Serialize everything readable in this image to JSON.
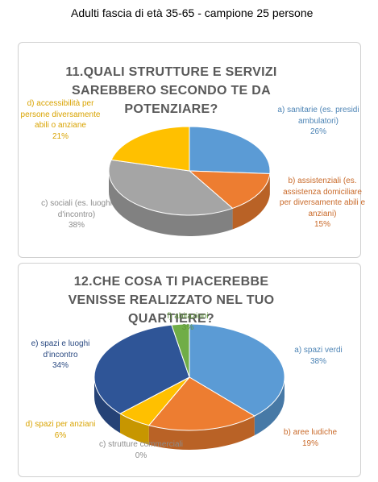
{
  "header": {
    "title": "Adulti fascia di età 35-65 - campione 25 persone"
  },
  "chart_data": [
    {
      "type": "pie",
      "title": "11.QUALI STRUTTURE E SERVIZI SAREBBERO SECONDO TE DA POTENZIARE?",
      "categories": [
        "a) sanitarie (es. presidi ambulatori)",
        "b) assistenziali (es. assistenza domiciliare per diversamente abili e anziani)",
        "c) sociali (es. luoghi d'incontro)",
        "d) accessibilità per persone diversamente abili o anziane"
      ],
      "values": [
        26,
        15,
        38,
        21
      ],
      "value_labels": [
        "26%",
        "15%",
        "38%",
        "21%"
      ],
      "colors": [
        "#5b9bd5",
        "#ed7d31",
        "#a5a5a5",
        "#ffc000"
      ]
    },
    {
      "type": "pie",
      "title": "12.CHE COSA TI PIACEREBBE VENISSE REALIZZATO NEL TUO QUARTIERE?",
      "categories": [
        "a) spazi verdi",
        "b) aree ludiche",
        "c) strutture commerciali",
        "d) spazi per anziani",
        "e) spazi e luoghi d'incontro",
        "f) abitazioni"
      ],
      "values": [
        38,
        19,
        0,
        6,
        34,
        3
      ],
      "value_labels": [
        "38%",
        "19%",
        "0%",
        "6%",
        "34%",
        "3%"
      ],
      "colors": [
        "#5b9bd5",
        "#ed7d31",
        "#a5a5a5",
        "#ffc000",
        "#2f5597",
        "#70ad47"
      ]
    }
  ]
}
